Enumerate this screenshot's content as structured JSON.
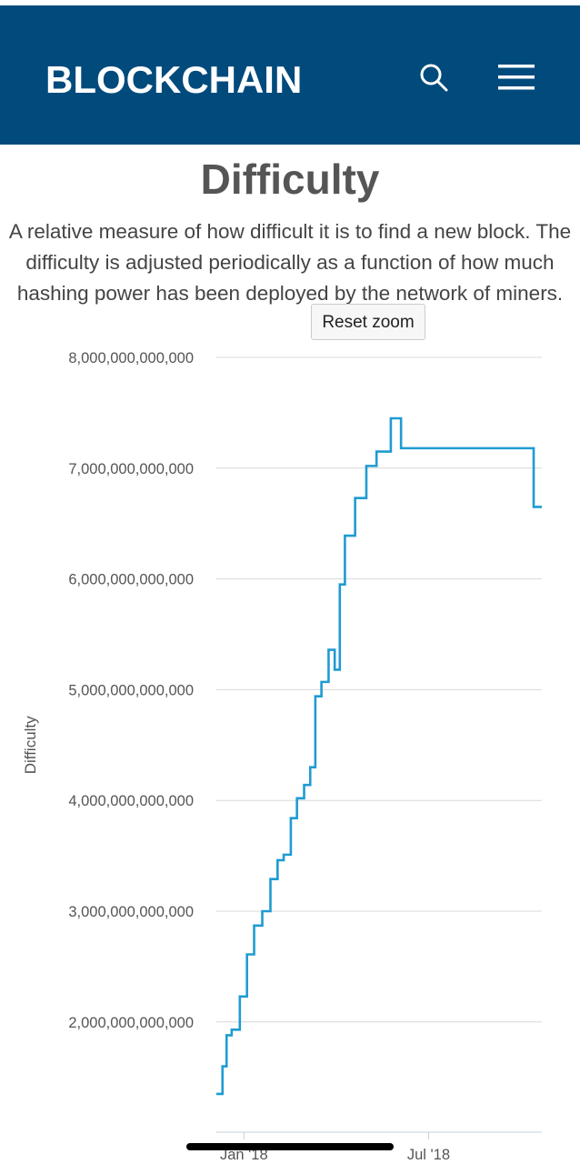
{
  "header": {
    "brand": "BLOCKCHAIN",
    "background": "#004a7c"
  },
  "icons": {
    "search": "search-icon",
    "menu": "hamburger-menu-icon"
  },
  "page": {
    "title": "Difficulty",
    "description": "A relative measure of how difficult it is to find a new block. The difficulty is adjusted periodically as a function of how much hashing power has been deployed by the network of miners."
  },
  "reset_zoom_label": "Reset zoom",
  "chart_data": {
    "type": "line",
    "step": true,
    "ylabel": "Difficulty",
    "ylim": [
      1000000000000,
      8000000000000
    ],
    "yticks": [
      2000000000000,
      3000000000000,
      4000000000000,
      5000000000000,
      6000000000000,
      7000000000000,
      8000000000000
    ],
    "ytick_labels": [
      "2,000,000,000,000",
      "3,000,000,000,000",
      "4,000,000,000,000",
      "5,000,000,000,000",
      "6,000,000,000,000",
      "7,000,000,000,000",
      "8,000,000,000,000"
    ],
    "xlim": [
      "2017-12-05",
      "2018-10-20"
    ],
    "xticks": [
      "2018-01-01",
      "2018-07-01"
    ],
    "xtick_labels": [
      "Jan '18",
      "Jul '18"
    ],
    "grid": true,
    "line_color": "#1f9bd1",
    "series": [
      {
        "x": [
          "2017-12-05",
          "2017-12-11",
          "2017-12-15",
          "2017-12-20",
          "2017-12-28",
          "2018-01-04",
          "2018-01-11",
          "2018-01-19",
          "2018-01-27",
          "2018-02-03",
          "2018-02-09",
          "2018-02-16",
          "2018-02-22",
          "2018-03-01",
          "2018-03-07",
          "2018-03-12",
          "2018-03-18",
          "2018-03-25",
          "2018-03-31",
          "2018-04-05",
          "2018-04-10",
          "2018-04-20",
          "2018-05-01",
          "2018-05-11",
          "2018-05-25",
          "2018-06-04",
          "2018-06-13",
          "2018-06-20",
          "2018-06-28",
          "2018-07-08",
          "2018-07-15",
          "2018-07-23",
          "2018-08-01",
          "2018-08-11",
          "2018-08-22",
          "2018-09-02",
          "2018-09-20",
          "2018-10-12",
          "2018-10-20"
        ],
        "y": [
          1350000000000,
          1600000000000,
          1880000000000,
          1930000000000,
          2230000000000,
          2610000000000,
          2870000000000,
          3000000000000,
          3290000000000,
          3460000000000,
          3510000000000,
          3840000000000,
          4020000000000,
          4140000000000,
          4300000000000,
          4940000000000,
          5070000000000,
          5360000000000,
          5180000000000,
          5950000000000,
          6390000000000,
          6730000000000,
          7020000000000,
          7150000000000,
          7450000000000,
          7180000000000,
          7180000000000,
          7180000000000,
          7180000000000,
          7180000000000,
          7180000000000,
          7180000000000,
          7180000000000,
          7180000000000,
          7180000000000,
          7180000000000,
          7180000000000,
          6650000000000,
          6650000000000
        ]
      }
    ]
  }
}
